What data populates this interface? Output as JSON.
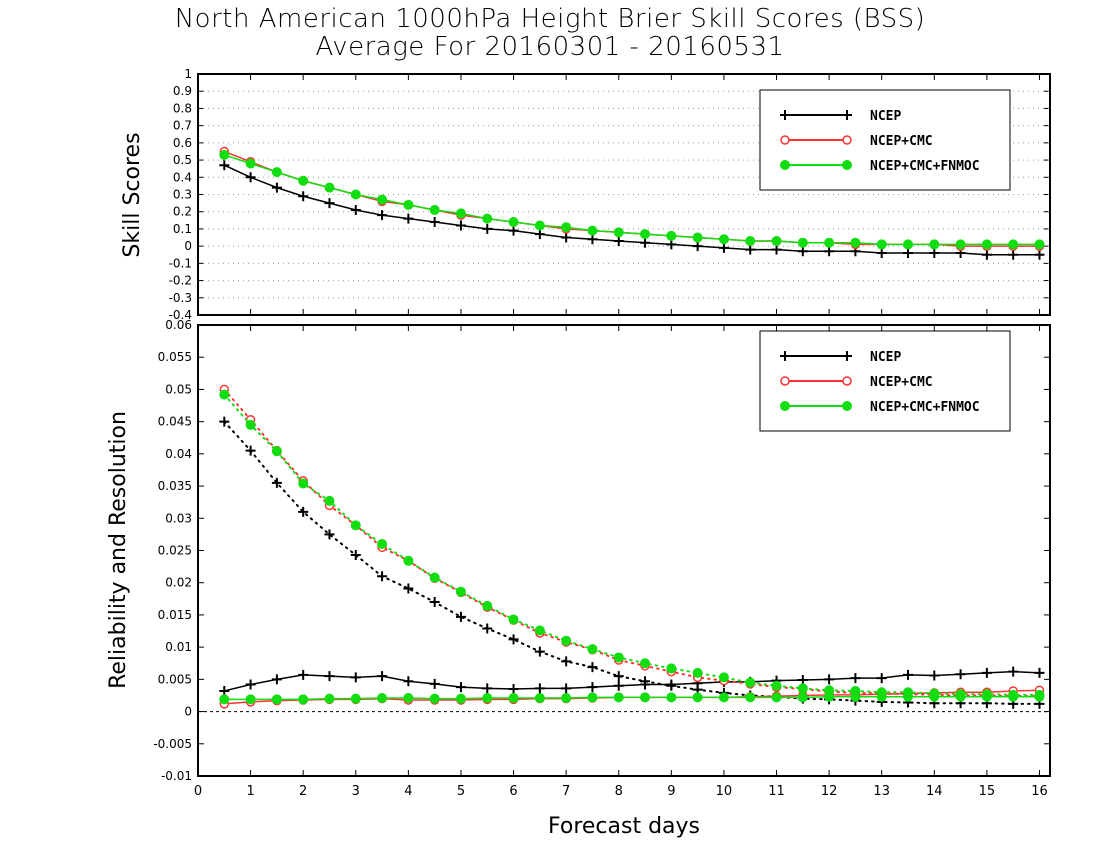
{
  "title_line1": "North American 1000hPa Height Brier Skill Scores (BSS)",
  "title_line2": "Average For 20160301 - 20160531",
  "colors": {
    "NCEP": "#000000",
    "NCEP+CMC": "#ff3333",
    "NCEP+CMC+FNMOC": "#11dd11"
  },
  "chart_data": [
    {
      "type": "line",
      "ylabel": "Skill Scores",
      "xlabel": "",
      "xlim": [
        0,
        16.2
      ],
      "ylim": [
        -0.4,
        1.0
      ],
      "yticks": [
        "1",
        "0.9",
        "0.8",
        "0.7",
        "0.6",
        "0.5",
        "0.4",
        "0.3",
        "0.2",
        "0.1",
        "0",
        "-0.1",
        "-0.2",
        "-0.3",
        "-0.4"
      ],
      "grid": true,
      "legend_position": "top-right",
      "x": [
        0.5,
        1,
        1.5,
        2,
        2.5,
        3,
        3.5,
        4,
        4.5,
        5,
        5.5,
        6,
        6.5,
        7,
        7.5,
        8,
        8.5,
        9,
        9.5,
        10,
        10.5,
        11,
        11.5,
        12,
        12.5,
        13,
        13.5,
        14,
        14.5,
        15,
        15.5,
        16
      ],
      "series": [
        {
          "name": "NCEP",
          "marker": "plus",
          "style": "solid",
          "values": [
            0.47,
            0.4,
            0.34,
            0.29,
            0.25,
            0.21,
            0.18,
            0.16,
            0.14,
            0.12,
            0.1,
            0.09,
            0.07,
            0.05,
            0.04,
            0.03,
            0.02,
            0.01,
            0.0,
            -0.01,
            -0.02,
            -0.02,
            -0.03,
            -0.03,
            -0.03,
            -0.04,
            -0.04,
            -0.04,
            -0.04,
            -0.05,
            -0.05,
            -0.05
          ]
        },
        {
          "name": "NCEP+CMC",
          "marker": "open-circle",
          "style": "solid",
          "values": [
            0.55,
            0.49,
            0.43,
            0.38,
            0.34,
            0.3,
            0.26,
            0.24,
            0.21,
            0.18,
            0.16,
            0.14,
            0.12,
            0.1,
            0.09,
            0.08,
            0.07,
            0.06,
            0.05,
            0.04,
            0.03,
            0.03,
            0.02,
            0.02,
            0.01,
            0.01,
            0.01,
            0.01,
            0.0,
            0.0,
            0.0,
            0.0
          ]
        },
        {
          "name": "NCEP+CMC+FNMOC",
          "marker": "filled-circle",
          "style": "solid",
          "values": [
            0.53,
            0.48,
            0.43,
            0.38,
            0.34,
            0.3,
            0.27,
            0.24,
            0.21,
            0.19,
            0.16,
            0.14,
            0.12,
            0.11,
            0.09,
            0.08,
            0.07,
            0.06,
            0.05,
            0.04,
            0.03,
            0.03,
            0.02,
            0.02,
            0.02,
            0.01,
            0.01,
            0.01,
            0.01,
            0.01,
            0.01,
            0.01
          ]
        }
      ]
    },
    {
      "type": "line",
      "ylabel": "Reliability and Resolution",
      "xlabel": "Forecast days",
      "xlim": [
        0,
        16.2
      ],
      "ylim": [
        -0.01,
        0.06
      ],
      "yticks": [
        "0.06",
        "0.055",
        "0.05",
        "0.045",
        "0.04",
        "0.035",
        "0.03",
        "0.025",
        "0.02",
        "0.015",
        "0.01",
        "0.005",
        "0",
        "-0.005",
        "-0.01"
      ],
      "xticks": [
        "0",
        "1",
        "2",
        "3",
        "4",
        "5",
        "6",
        "7",
        "8",
        "9",
        "10",
        "11",
        "12",
        "13",
        "14",
        "15",
        "16"
      ],
      "grid": false,
      "legend_position": "top-right",
      "x": [
        0.5,
        1,
        1.5,
        2,
        2.5,
        3,
        3.5,
        4,
        4.5,
        5,
        5.5,
        6,
        6.5,
        7,
        7.5,
        8,
        8.5,
        9,
        9.5,
        10,
        10.5,
        11,
        11.5,
        12,
        12.5,
        13,
        13.5,
        14,
        14.5,
        15,
        15.5,
        16
      ],
      "series": [
        {
          "name": "NCEP",
          "marker": "plus",
          "style": "solid",
          "component": "reliability",
          "values": [
            0.0032,
            0.0042,
            0.005,
            0.0057,
            0.0055,
            0.0053,
            0.0055,
            0.0047,
            0.0043,
            0.0038,
            0.0036,
            0.0035,
            0.0036,
            0.0036,
            0.0038,
            0.004,
            0.0042,
            0.0042,
            0.0044,
            0.0046,
            0.0046,
            0.0048,
            0.0049,
            0.005,
            0.0052,
            0.0052,
            0.0057,
            0.0056,
            0.0058,
            0.006,
            0.0062,
            0.006
          ]
        },
        {
          "name": "NCEP",
          "marker": "plus",
          "style": "dotted",
          "component": "resolution",
          "values": [
            0.045,
            0.0405,
            0.0355,
            0.031,
            0.0275,
            0.0243,
            0.021,
            0.0191,
            0.017,
            0.0147,
            0.0129,
            0.0112,
            0.0093,
            0.0078,
            0.0069,
            0.0055,
            0.0047,
            0.004,
            0.0034,
            0.0029,
            0.0025,
            0.0023,
            0.002,
            0.0019,
            0.0017,
            0.0015,
            0.0014,
            0.0013,
            0.0013,
            0.0013,
            0.0012,
            0.0012
          ]
        },
        {
          "name": "NCEP+CMC",
          "marker": "open-circle",
          "style": "solid",
          "component": "reliability",
          "values": [
            0.0012,
            0.0015,
            0.0017,
            0.0018,
            0.0019,
            0.0019,
            0.002,
            0.0018,
            0.0018,
            0.0018,
            0.0019,
            0.0019,
            0.002,
            0.002,
            0.0021,
            0.0022,
            0.0022,
            0.0022,
            0.0022,
            0.0022,
            0.0023,
            0.0024,
            0.0025,
            0.0026,
            0.0026,
            0.0027,
            0.0028,
            0.0029,
            0.003,
            0.003,
            0.0032,
            0.0033
          ]
        },
        {
          "name": "NCEP+CMC",
          "marker": "open-circle",
          "style": "dotted",
          "component": "resolution",
          "values": [
            0.05,
            0.0453,
            0.0405,
            0.0358,
            0.032,
            0.0289,
            0.0255,
            0.0234,
            0.0207,
            0.0185,
            0.0162,
            0.0142,
            0.0122,
            0.0108,
            0.0096,
            0.008,
            0.0071,
            0.0062,
            0.0053,
            0.0048,
            0.0043,
            0.0038,
            0.0035,
            0.0031,
            0.0029,
            0.0028,
            0.0027,
            0.0026,
            0.0025,
            0.0025,
            0.0024,
            0.0024
          ]
        },
        {
          "name": "NCEP+CMC+FNMOC",
          "marker": "filled-circle",
          "style": "solid",
          "component": "reliability",
          "values": [
            0.0019,
            0.0019,
            0.0019,
            0.0019,
            0.002,
            0.002,
            0.0021,
            0.0021,
            0.002,
            0.002,
            0.0021,
            0.0021,
            0.0021,
            0.0021,
            0.0022,
            0.0022,
            0.0022,
            0.0022,
            0.0022,
            0.0022,
            0.0022,
            0.0022,
            0.0022,
            0.0023,
            0.0023,
            0.0023,
            0.0023,
            0.0023,
            0.0023,
            0.0023,
            0.0023,
            0.0023
          ]
        },
        {
          "name": "NCEP+CMC+FNMOC",
          "marker": "filled-circle",
          "style": "dotted",
          "component": "resolution",
          "values": [
            0.0492,
            0.0445,
            0.0404,
            0.0354,
            0.0327,
            0.0289,
            0.026,
            0.0234,
            0.0208,
            0.0186,
            0.0164,
            0.0143,
            0.0126,
            0.011,
            0.0097,
            0.0084,
            0.0075,
            0.0067,
            0.006,
            0.0053,
            0.0045,
            0.004,
            0.0036,
            0.0033,
            0.0032,
            0.003,
            0.003,
            0.0028,
            0.0027,
            0.0027,
            0.0026,
            0.0026
          ]
        }
      ]
    }
  ]
}
